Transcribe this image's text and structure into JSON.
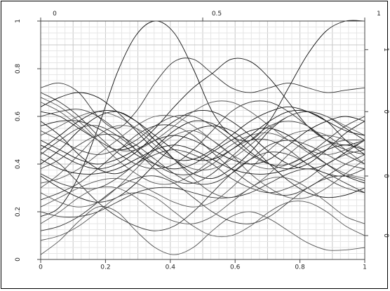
{
  "chart_data": {
    "type": "line",
    "title": "",
    "xlabel": "",
    "ylabel": "",
    "xlim": [
      0,
      1
    ],
    "ylim": [
      0,
      1
    ],
    "grid": true,
    "legend": "none",
    "bottom_ticks": [
      "0",
      "0.2",
      "0.4",
      "0.6",
      "0.8",
      "1"
    ],
    "left_ticks": [
      "0",
      "0.2",
      "0.4",
      "0.6",
      "0.8",
      "1"
    ],
    "top_ticks": [
      "0",
      "0.5",
      "1"
    ],
    "right_ticks": [
      "1",
      "0",
      "0",
      "0",
      "0"
    ],
    "x": [
      0.0,
      0.0588,
      0.1176,
      0.1765,
      0.2353,
      0.2941,
      0.3529,
      0.4118,
      0.4706,
      0.5294,
      0.5882,
      0.6471,
      0.7059,
      0.7647,
      0.8235,
      0.8824,
      0.9412,
      1.0
    ],
    "series_note_count": 32,
    "series": [
      {
        "values": [
          0.18,
          0.22,
          0.35,
          0.55,
          0.78,
          0.94,
          1.0,
          0.95,
          0.8,
          0.62,
          0.52,
          0.5,
          0.58,
          0.72,
          0.86,
          0.96,
          1.0,
          1.0
        ]
      },
      {
        "values": [
          0.72,
          0.74,
          0.7,
          0.6,
          0.55,
          0.62,
          0.74,
          0.83,
          0.84,
          0.78,
          0.72,
          0.7,
          0.72,
          0.74,
          0.72,
          0.7,
          0.71,
          0.72
        ]
      },
      {
        "values": [
          0.02,
          0.08,
          0.16,
          0.22,
          0.2,
          0.12,
          0.05,
          0.02,
          0.05,
          0.12,
          0.18,
          0.2,
          0.17,
          0.12,
          0.07,
          0.04,
          0.04,
          0.05
        ]
      },
      {
        "values": [
          0.62,
          0.6,
          0.55,
          0.5,
          0.46,
          0.48,
          0.55,
          0.64,
          0.72,
          0.78,
          0.84,
          0.83,
          0.76,
          0.66,
          0.56,
          0.5,
          0.48,
          0.5
        ]
      },
      {
        "values": [
          0.45,
          0.4,
          0.32,
          0.24,
          0.18,
          0.14,
          0.12,
          0.14,
          0.2,
          0.28,
          0.36,
          0.42,
          0.45,
          0.44,
          0.4,
          0.34,
          0.3,
          0.28
        ]
      },
      {
        "values": [
          0.3,
          0.36,
          0.44,
          0.52,
          0.56,
          0.55,
          0.5,
          0.42,
          0.34,
          0.28,
          0.26,
          0.3,
          0.36,
          0.44,
          0.5,
          0.52,
          0.5,
          0.46
        ]
      },
      {
        "values": [
          0.58,
          0.52,
          0.44,
          0.38,
          0.36,
          0.4,
          0.47,
          0.54,
          0.58,
          0.57,
          0.52,
          0.45,
          0.4,
          0.38,
          0.4,
          0.46,
          0.53,
          0.58
        ]
      },
      {
        "values": [
          0.25,
          0.28,
          0.32,
          0.38,
          0.45,
          0.52,
          0.56,
          0.56,
          0.52,
          0.45,
          0.38,
          0.32,
          0.28,
          0.27,
          0.3,
          0.35,
          0.4,
          0.44
        ]
      },
      {
        "values": [
          0.68,
          0.64,
          0.58,
          0.5,
          0.42,
          0.36,
          0.32,
          0.32,
          0.36,
          0.42,
          0.48,
          0.52,
          0.53,
          0.5,
          0.45,
          0.4,
          0.36,
          0.34
        ]
      },
      {
        "values": [
          0.4,
          0.46,
          0.54,
          0.6,
          0.62,
          0.58,
          0.5,
          0.42,
          0.36,
          0.34,
          0.38,
          0.45,
          0.54,
          0.6,
          0.62,
          0.6,
          0.55,
          0.5
        ]
      },
      {
        "values": [
          0.12,
          0.14,
          0.18,
          0.24,
          0.3,
          0.34,
          0.35,
          0.32,
          0.26,
          0.2,
          0.16,
          0.15,
          0.18,
          0.24,
          0.3,
          0.34,
          0.35,
          0.33
        ]
      },
      {
        "values": [
          0.52,
          0.56,
          0.6,
          0.62,
          0.6,
          0.55,
          0.48,
          0.42,
          0.38,
          0.38,
          0.42,
          0.48,
          0.55,
          0.6,
          0.62,
          0.6,
          0.56,
          0.52
        ]
      },
      {
        "values": [
          0.35,
          0.3,
          0.26,
          0.24,
          0.26,
          0.32,
          0.4,
          0.48,
          0.54,
          0.56,
          0.54,
          0.48,
          0.4,
          0.33,
          0.28,
          0.26,
          0.27,
          0.3
        ]
      },
      {
        "values": [
          0.6,
          0.62,
          0.63,
          0.6,
          0.54,
          0.46,
          0.38,
          0.33,
          0.32,
          0.36,
          0.43,
          0.5,
          0.56,
          0.58,
          0.56,
          0.5,
          0.44,
          0.4
        ]
      },
      {
        "values": [
          0.22,
          0.26,
          0.3,
          0.33,
          0.34,
          0.32,
          0.28,
          0.24,
          0.22,
          0.24,
          0.3,
          0.38,
          0.46,
          0.52,
          0.54,
          0.52,
          0.46,
          0.4
        ]
      },
      {
        "values": [
          0.48,
          0.44,
          0.4,
          0.38,
          0.4,
          0.45,
          0.52,
          0.58,
          0.62,
          0.62,
          0.58,
          0.52,
          0.45,
          0.4,
          0.38,
          0.4,
          0.45,
          0.5
        ]
      },
      {
        "values": [
          0.7,
          0.66,
          0.6,
          0.52,
          0.45,
          0.4,
          0.38,
          0.4,
          0.46,
          0.54,
          0.62,
          0.66,
          0.66,
          0.62,
          0.56,
          0.5,
          0.46,
          0.44
        ]
      },
      {
        "values": [
          0.28,
          0.24,
          0.22,
          0.24,
          0.3,
          0.38,
          0.46,
          0.52,
          0.54,
          0.5,
          0.44,
          0.36,
          0.3,
          0.26,
          0.26,
          0.3,
          0.36,
          0.42
        ]
      },
      {
        "values": [
          0.56,
          0.58,
          0.58,
          0.55,
          0.5,
          0.44,
          0.4,
          0.38,
          0.4,
          0.45,
          0.5,
          0.54,
          0.55,
          0.52,
          0.46,
          0.4,
          0.35,
          0.32
        ]
      },
      {
        "values": [
          0.38,
          0.42,
          0.48,
          0.52,
          0.52,
          0.48,
          0.42,
          0.36,
          0.32,
          0.32,
          0.36,
          0.42,
          0.48,
          0.5,
          0.48,
          0.44,
          0.4,
          0.38
        ]
      },
      {
        "values": [
          0.08,
          0.1,
          0.14,
          0.2,
          0.26,
          0.28,
          0.26,
          0.2,
          0.14,
          0.1,
          0.1,
          0.14,
          0.2,
          0.24,
          0.24,
          0.2,
          0.14,
          0.1
        ]
      },
      {
        "values": [
          0.64,
          0.68,
          0.7,
          0.68,
          0.62,
          0.54,
          0.46,
          0.42,
          0.42,
          0.46,
          0.52,
          0.58,
          0.62,
          0.64,
          0.62,
          0.58,
          0.54,
          0.52
        ]
      },
      {
        "values": [
          0.44,
          0.5,
          0.55,
          0.56,
          0.52,
          0.46,
          0.4,
          0.36,
          0.36,
          0.4,
          0.46,
          0.5,
          0.5,
          0.46,
          0.4,
          0.36,
          0.35,
          0.38
        ]
      },
      {
        "values": [
          0.32,
          0.34,
          0.38,
          0.44,
          0.5,
          0.56,
          0.6,
          0.6,
          0.56,
          0.5,
          0.44,
          0.4,
          0.38,
          0.4,
          0.44,
          0.48,
          0.5,
          0.5
        ]
      },
      {
        "values": [
          0.5,
          0.46,
          0.42,
          0.4,
          0.42,
          0.46,
          0.5,
          0.52,
          0.5,
          0.46,
          0.42,
          0.4,
          0.42,
          0.48,
          0.54,
          0.58,
          0.6,
          0.58
        ]
      },
      {
        "values": [
          0.2,
          0.18,
          0.18,
          0.2,
          0.24,
          0.28,
          0.3,
          0.3,
          0.28,
          0.26,
          0.26,
          0.28,
          0.32,
          0.36,
          0.38,
          0.36,
          0.32,
          0.28
        ]
      },
      {
        "values": [
          0.66,
          0.62,
          0.56,
          0.5,
          0.46,
          0.46,
          0.5,
          0.56,
          0.62,
          0.66,
          0.66,
          0.62,
          0.56,
          0.5,
          0.46,
          0.44,
          0.46,
          0.5
        ]
      },
      {
        "values": [
          0.42,
          0.38,
          0.36,
          0.36,
          0.38,
          0.42,
          0.46,
          0.48,
          0.46,
          0.42,
          0.38,
          0.36,
          0.36,
          0.38,
          0.42,
          0.46,
          0.48,
          0.46
        ]
      },
      {
        "values": [
          0.54,
          0.5,
          0.46,
          0.44,
          0.46,
          0.5,
          0.56,
          0.6,
          0.6,
          0.56,
          0.5,
          0.44,
          0.4,
          0.4,
          0.44,
          0.5,
          0.56,
          0.6
        ]
      },
      {
        "values": [
          0.15,
          0.2,
          0.26,
          0.3,
          0.3,
          0.26,
          0.2,
          0.16,
          0.15,
          0.18,
          0.24,
          0.3,
          0.34,
          0.34,
          0.3,
          0.24,
          0.18,
          0.15
        ]
      },
      {
        "values": [
          0.46,
          0.52,
          0.58,
          0.62,
          0.62,
          0.58,
          0.52,
          0.46,
          0.42,
          0.42,
          0.46,
          0.52,
          0.58,
          0.62,
          0.62,
          0.58,
          0.5,
          0.44
        ]
      },
      {
        "values": [
          0.36,
          0.32,
          0.3,
          0.3,
          0.34,
          0.4,
          0.44,
          0.46,
          0.44,
          0.4,
          0.34,
          0.3,
          0.28,
          0.3,
          0.34,
          0.4,
          0.44,
          0.46
        ]
      }
    ]
  }
}
